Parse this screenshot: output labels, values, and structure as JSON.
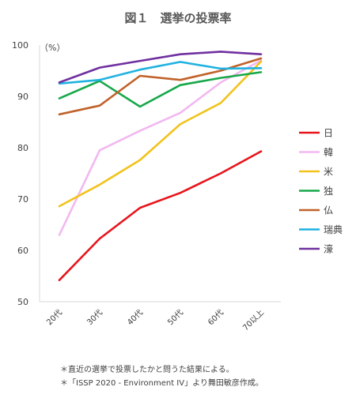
{
  "chart_data": {
    "type": "line",
    "title": "図１　選挙の投票率",
    "ylabel": "（%）",
    "xlabel": "",
    "ylim": [
      50,
      100
    ],
    "yticks": [
      50,
      60,
      70,
      80,
      90,
      100
    ],
    "categories": [
      "20代",
      "30代",
      "40代",
      "50代",
      "60代",
      "70以上"
    ],
    "grid": false,
    "legend_position": "right",
    "series": [
      {
        "name": "日",
        "color": "#e8141c",
        "values": [
          54.2,
          62.3,
          68.3,
          71.2,
          75.0,
          79.3
        ]
      },
      {
        "name": "韓",
        "color": "#f2b8f0",
        "values": [
          63.0,
          79.5,
          83.3,
          86.8,
          92.7,
          97.0
        ]
      },
      {
        "name": "米",
        "color": "#f2c31c",
        "values": [
          68.6,
          72.8,
          77.6,
          84.6,
          88.7,
          96.8
        ]
      },
      {
        "name": "独",
        "color": "#17a84a",
        "values": [
          89.6,
          93.0,
          88.0,
          92.2,
          93.6,
          94.7
        ]
      },
      {
        "name": "仏",
        "color": "#c0622a",
        "values": [
          86.5,
          88.2,
          94.0,
          93.2,
          95.0,
          97.4
        ]
      },
      {
        "name": "瑞典",
        "color": "#1fb2e0",
        "values": [
          92.5,
          93.2,
          95.2,
          96.7,
          95.4,
          95.5
        ]
      },
      {
        "name": "濠",
        "color": "#7030a0",
        "values": [
          92.7,
          95.6,
          96.9,
          98.2,
          98.7,
          98.2
        ]
      }
    ]
  },
  "notes": [
    "＊直近の選挙で投票したかと問うた結果による。",
    "＊「ISSP 2020 - Environment IV」より舞田敏彦作成。"
  ]
}
